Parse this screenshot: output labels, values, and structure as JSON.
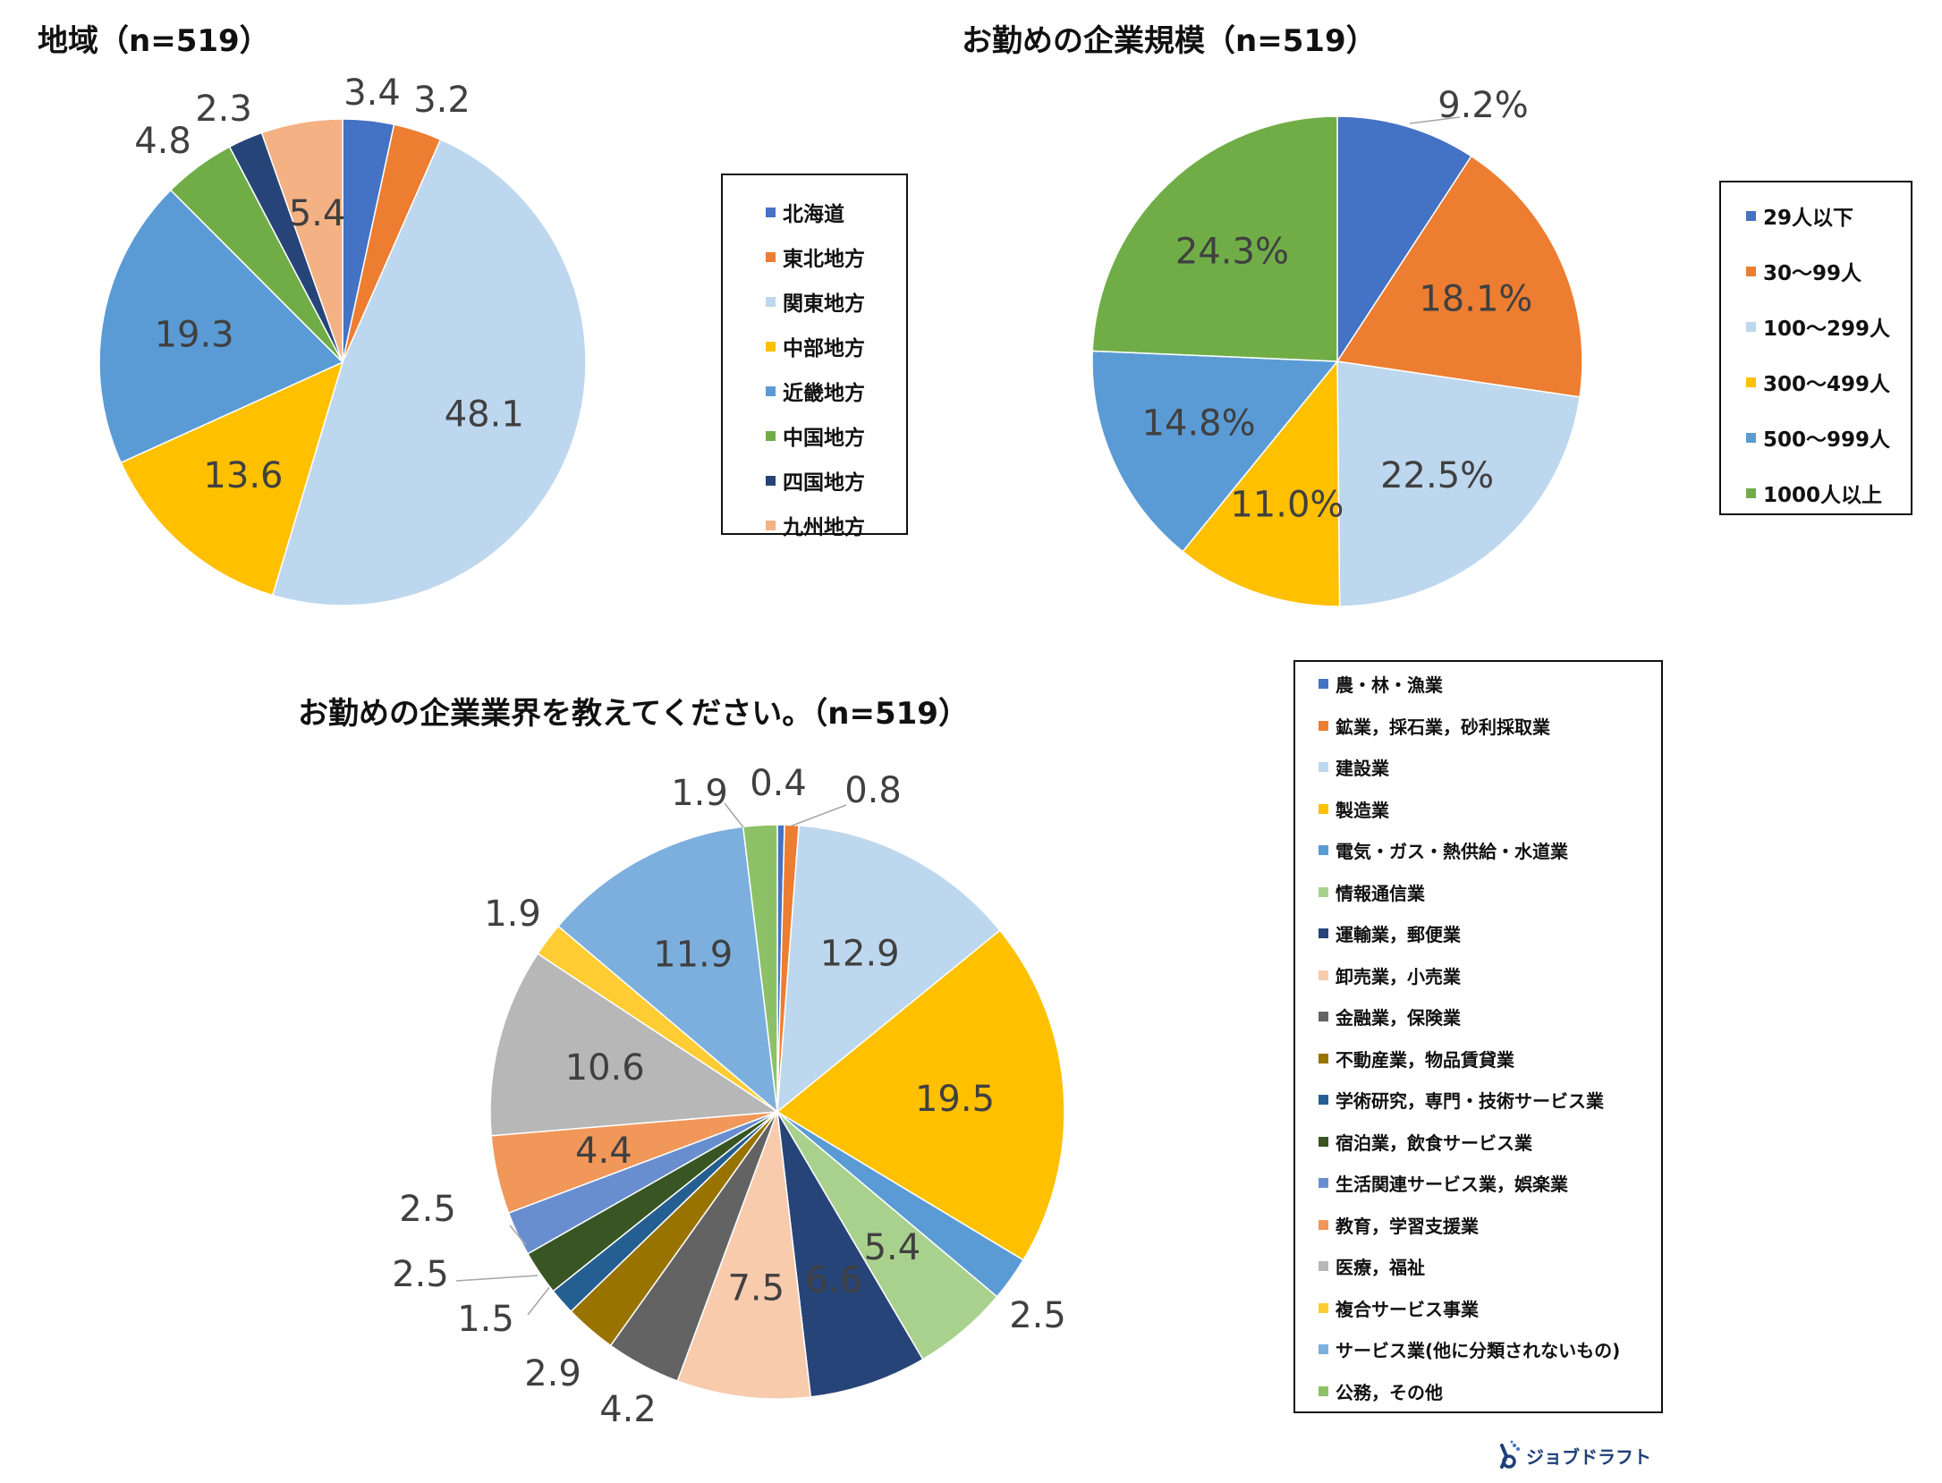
{
  "chart_data": [
    {
      "type": "pie",
      "title": "地域（n=519）",
      "categories": [
        "北海道",
        "東北地方",
        "関東地方",
        "中部地方",
        "近畿地方",
        "中国地方",
        "四国地方",
        "九州地方"
      ],
      "values": [
        3.4,
        3.2,
        48.1,
        13.6,
        19.3,
        4.8,
        2.3,
        5.4
      ],
      "labels": [
        "3.4",
        "3.2",
        "48.1",
        "13.6",
        "19.3",
        "4.8",
        "2.3",
        "5.4"
      ],
      "colors": [
        "#4472C4",
        "#ED7D31",
        "#BDD7EE",
        "#FFC000",
        "#5B9BD5",
        "#70AD47",
        "#264478",
        "#F4B183"
      ],
      "legend_position": "right"
    },
    {
      "type": "pie",
      "title": "お勤めの企業規模（n=519）",
      "categories": [
        "29人以下",
        "30～99人",
        "100～299人",
        "300～499人",
        "500～999人",
        "1000人以上"
      ],
      "values": [
        9.2,
        18.1,
        22.5,
        11.0,
        14.8,
        24.3
      ],
      "labels": [
        "9.2%",
        "18.1%",
        "22.5%",
        "11.0%",
        "14.8%",
        "24.3%"
      ],
      "colors": [
        "#4472C4",
        "#ED7D31",
        "#BDD7EE",
        "#FFC000",
        "#5B9BD5",
        "#70AD47"
      ],
      "legend_position": "right"
    },
    {
      "type": "pie",
      "title": "お勤めの企業業界を教えてください。（n=519）",
      "categories": [
        "農・林・漁業",
        "鉱業，採石業，砂利採取業",
        "建設業",
        "製造業",
        "電気・ガス・熱供給・水道業",
        "情報通信業",
        "運輸業，郵便業",
        "卸売業，小売業",
        "金融業，保険業",
        "不動産業，物品賃貸業",
        "学術研究，専門・技術サービス業",
        "宿泊業，飲食サービス業",
        "生活関連サービス業，娯楽業",
        "教育，学習支援業",
        "医療，福祉",
        "複合サービス事業",
        "サービス業(他に分類されないもの)",
        "公務，その他"
      ],
      "values": [
        0.4,
        0.8,
        12.9,
        19.5,
        2.5,
        5.4,
        6.6,
        7.5,
        4.2,
        2.9,
        1.5,
        2.5,
        2.5,
        4.4,
        10.6,
        1.9,
        11.9,
        1.9
      ],
      "labels": [
        "0.4",
        "0.8",
        "12.9",
        "19.5",
        "2.5",
        "5.4",
        "6.6",
        "7.5",
        "4.2",
        "2.9",
        "1.5",
        "2.5",
        "2.5",
        "4.4",
        "10.6",
        "1.9",
        "11.9",
        "1.9"
      ],
      "colors": [
        "#4472C4",
        "#ED7D31",
        "#BDD7EE",
        "#FFC000",
        "#5B9BD5",
        "#A9D18E",
        "#264478",
        "#F8CBAD",
        "#636363",
        "#997300",
        "#255E91",
        "#375623",
        "#698ED0",
        "#F1975A",
        "#B7B7B7",
        "#FFCD33",
        "#7CAFDD",
        "#8CC168"
      ],
      "legend_position": "right"
    }
  ],
  "logo": {
    "text": "ジョブドラフト",
    "color": "#1f3f7a"
  }
}
